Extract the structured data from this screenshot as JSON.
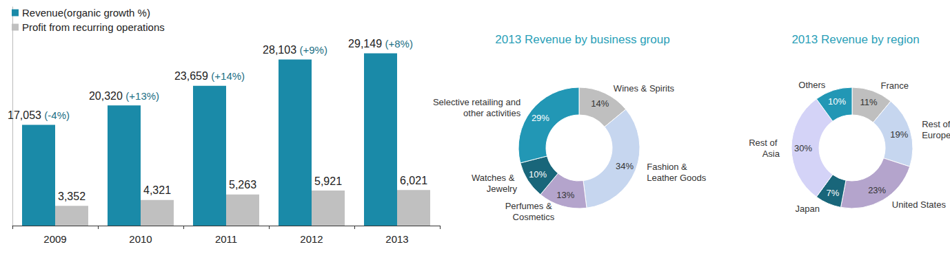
{
  "chart_data": [
    {
      "type": "bar",
      "categories": [
        "2009",
        "2010",
        "2011",
        "2012",
        "2013"
      ],
      "series": [
        {
          "name": "Revenue(organic growth %)",
          "color": "#1a8aa8",
          "values": [
            17053,
            20320,
            23659,
            28103,
            29149
          ],
          "value_labels": [
            "17,053",
            "20,320",
            "23,659",
            "28,103",
            "29,149"
          ],
          "growth": [
            -4,
            13,
            14,
            9,
            8
          ],
          "growth_labels": [
            "(-4%)",
            "(+13%)",
            "(+14%)",
            "(+9%)",
            "(+8%)"
          ]
        },
        {
          "name": "Profit from recurring operations",
          "color": "#c0c0c0",
          "values": [
            3352,
            4321,
            5263,
            5921,
            6021
          ],
          "value_labels": [
            "3,352",
            "4,321",
            "5,263",
            "5,921",
            "6,021"
          ]
        }
      ],
      "ylim": [
        0,
        37000
      ],
      "grid": false,
      "tick_labels": "x",
      "data_labels": true,
      "legend": "upper left"
    },
    {
      "type": "pie",
      "title": "2013 Revenue by business group",
      "categories": [
        "Wines & Spirits",
        "Fashion & Leather Goods",
        "Perfumes & Cosmetics",
        "Watches & Jewelry",
        "Selective retailing and other activities"
      ],
      "values": [
        14,
        34,
        13,
        10,
        29
      ],
      "value_labels": [
        "14%",
        "34%",
        "13%",
        "10%",
        "29%"
      ],
      "colors": [
        "#bfbfbf",
        "#c6d6ef",
        "#b4a4cc",
        "#19667a",
        "#2297b5"
      ],
      "data_labels": true
    },
    {
      "type": "pie",
      "title": "2013 Revenue by region",
      "categories": [
        "France",
        "Rest of Europe",
        "United States",
        "Japan",
        "Rest of Asia",
        "Others"
      ],
      "values": [
        11,
        19,
        23,
        7,
        30,
        10
      ],
      "value_labels": [
        "11%",
        "19%",
        "23%",
        "7%",
        "30%",
        "10%"
      ],
      "colors": [
        "#bfbfbf",
        "#c6d6ef",
        "#b4a4cc",
        "#19667a",
        "#d4d3f7",
        "#2297b5"
      ],
      "data_labels": true
    }
  ]
}
